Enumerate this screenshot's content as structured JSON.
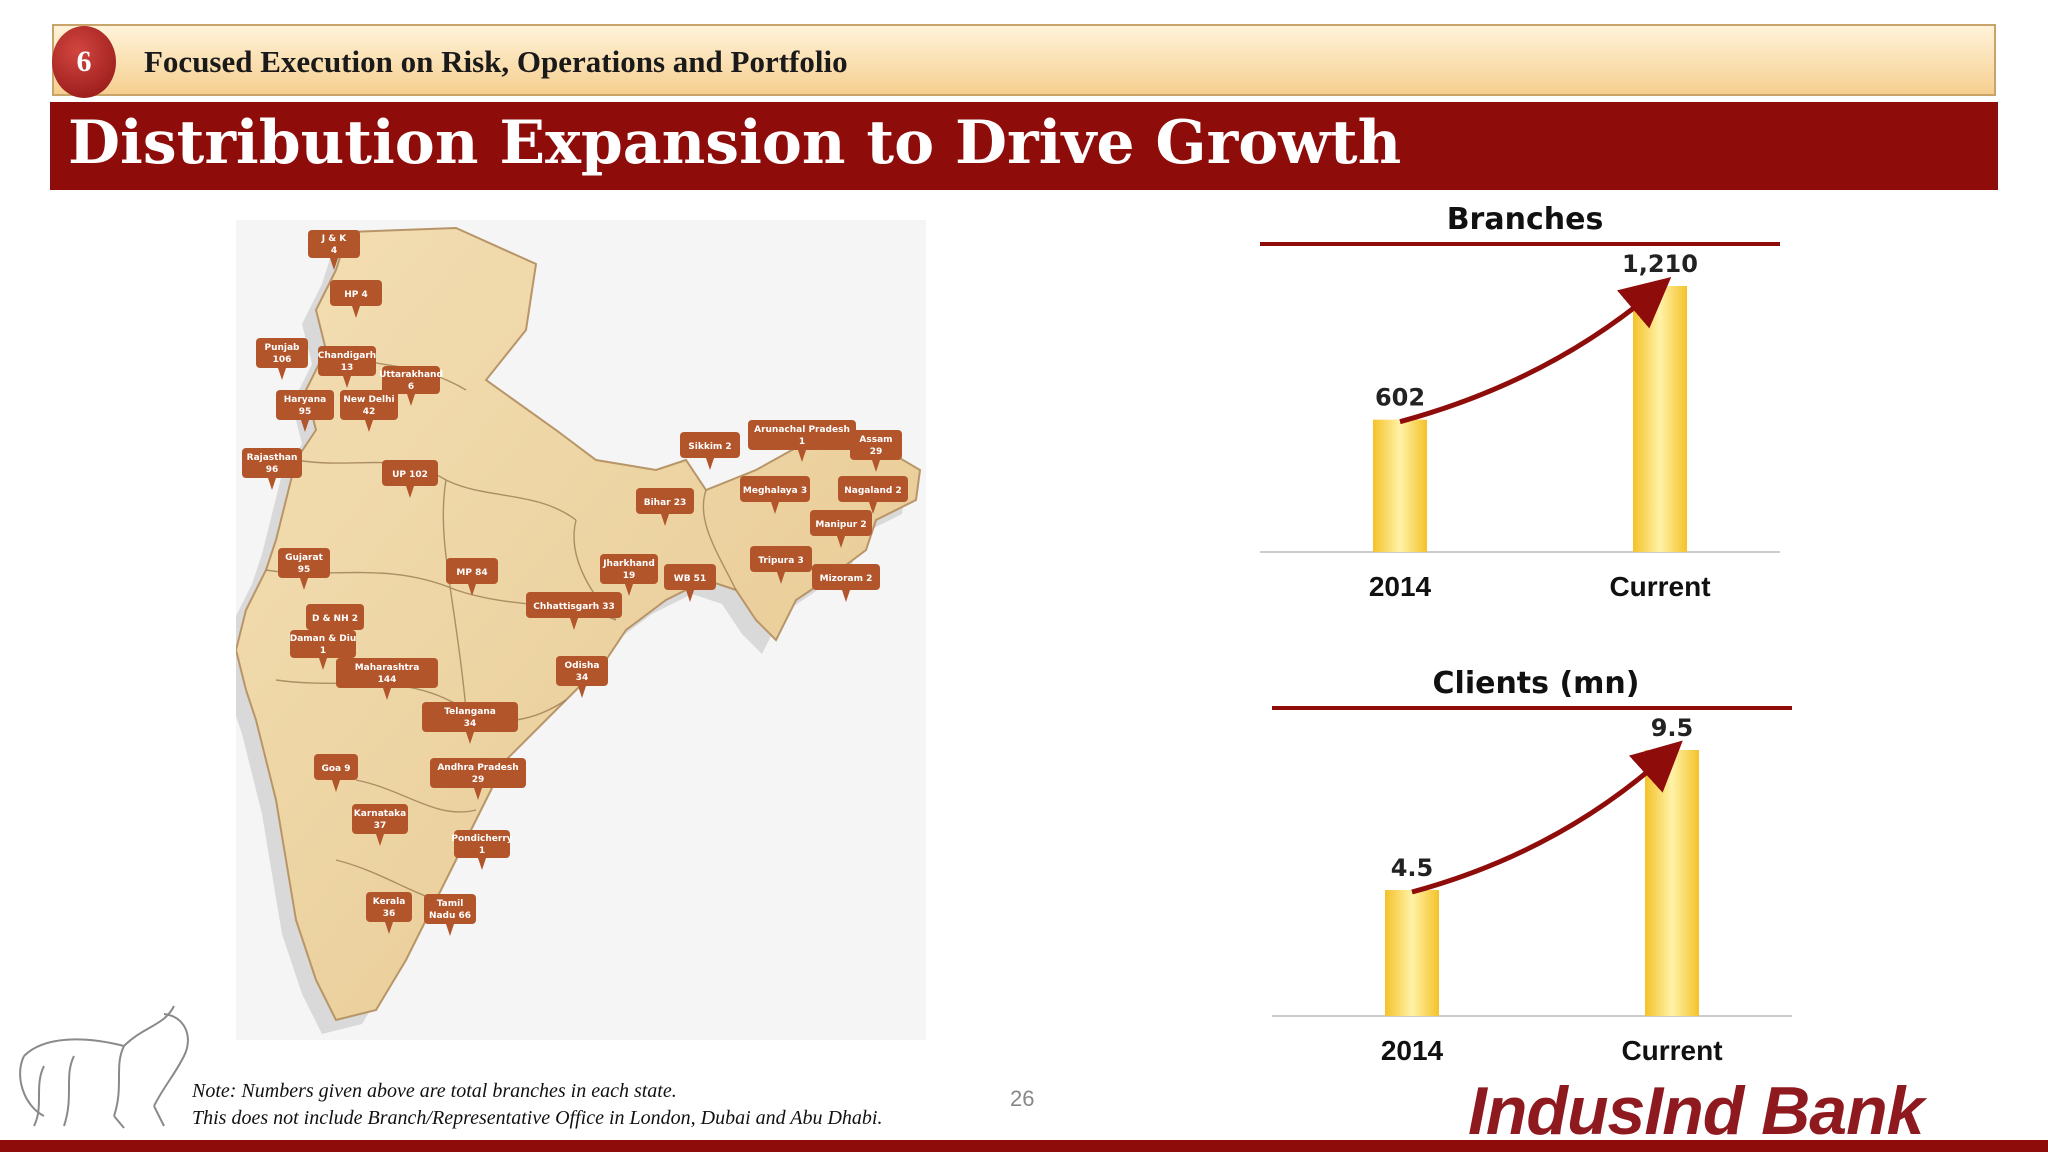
{
  "header": {
    "section_number": "6",
    "section_title": "Focused Execution on Risk, Operations and Portfolio",
    "page_title": "Distribution Expansion to Drive Growth"
  },
  "map": {
    "pins": [
      {
        "label": "J & K",
        "value": "4"
      },
      {
        "label": "HP 4",
        "value": ""
      },
      {
        "label": "Punjab",
        "value": "106"
      },
      {
        "label": "Chandigarh",
        "value": "13"
      },
      {
        "label": "Uttarakhand",
        "value": "6"
      },
      {
        "label": "Haryana",
        "value": "95"
      },
      {
        "label": "New Delhi",
        "value": "42"
      },
      {
        "label": "Rajasthan",
        "value": "96"
      },
      {
        "label": "UP 102",
        "value": ""
      },
      {
        "label": "Sikkim 2",
        "value": ""
      },
      {
        "label": "Arunachal Pradesh",
        "value": "1"
      },
      {
        "label": "Assam",
        "value": "29"
      },
      {
        "label": "Meghalaya 3",
        "value": ""
      },
      {
        "label": "Nagaland 2",
        "value": ""
      },
      {
        "label": "Bihar 23",
        "value": ""
      },
      {
        "label": "Manipur 2",
        "value": ""
      },
      {
        "label": "Gujarat",
        "value": "95"
      },
      {
        "label": "MP 84",
        "value": ""
      },
      {
        "label": "Jharkhand",
        "value": "19"
      },
      {
        "label": "WB 51",
        "value": ""
      },
      {
        "label": "Tripura 3",
        "value": ""
      },
      {
        "label": "Mizoram 2",
        "value": ""
      },
      {
        "label": "D & NH 2",
        "value": ""
      },
      {
        "label": "Chhattisgarh 33",
        "value": ""
      },
      {
        "label": "Daman & Diu",
        "value": "1"
      },
      {
        "label": "Maharashtra",
        "value": "144"
      },
      {
        "label": "Odisha",
        "value": "34"
      },
      {
        "label": "Telangana",
        "value": "34"
      },
      {
        "label": "Goa 9",
        "value": ""
      },
      {
        "label": "Andhra Pradesh",
        "value": "29"
      },
      {
        "label": "Karnataka",
        "value": "37"
      },
      {
        "label": "Pondicherry",
        "value": "1"
      },
      {
        "label": "Kerala",
        "value": "36"
      },
      {
        "label": "Tamil",
        "value": "Nadu 66"
      }
    ]
  },
  "chart_data": [
    {
      "type": "bar",
      "title": "Branches",
      "categories": [
        "2014",
        "Current"
      ],
      "values": [
        602,
        1210
      ],
      "data_labels": [
        "602",
        "1,210"
      ],
      "ylim": [
        0,
        1210
      ],
      "grid": false,
      "legend": "none"
    },
    {
      "type": "bar",
      "title": "Clients (mn)",
      "categories": [
        "2014",
        "Current"
      ],
      "values": [
        4.5,
        9.5
      ],
      "data_labels": [
        "4.5",
        "9.5"
      ],
      "ylim": [
        0,
        9.5
      ],
      "grid": false,
      "legend": "none"
    }
  ],
  "footer": {
    "note_line1": "Note: Numbers given above are total branches in each state.",
    "note_line2": "This does not include Branch/Representative Office in London, Dubai and Abu Dhabi.",
    "page_number": "26",
    "brand": "IndusInd Bank"
  },
  "colors": {
    "maroon": "#8e0c0a",
    "bar_gold": "#f7cf3c",
    "pin_brown": "#b2552b"
  }
}
